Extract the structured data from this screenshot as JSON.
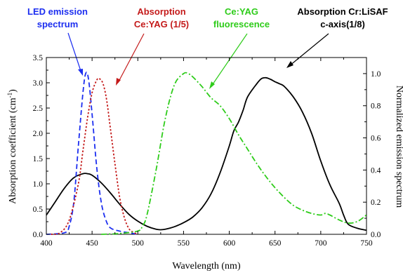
{
  "chart_data": {
    "type": "line",
    "xlabel": "Wavelength (nm)",
    "ylabel_left": "Absorption coefficient (cm",
    "ylabel_left_sup": "-1",
    "ylabel_left_end": ")",
    "ylabel_right": "Normalized emission spectrum",
    "xlim": [
      400,
      750
    ],
    "ylim_left": [
      0,
      3.5
    ],
    "ylim_right": [
      0,
      1.1
    ],
    "grid": false,
    "x_ticks": [
      "400",
      "450",
      "500",
      "550",
      "600",
      "650",
      "700",
      "750"
    ],
    "y_left_ticks": [
      "0.0",
      "0.5",
      "1.0",
      "1.5",
      "2.0",
      "2.5",
      "3.0",
      "3.5"
    ],
    "y_right_ticks": [
      "0.0",
      "0.2",
      "0.4",
      "0.6",
      "0.8",
      "1.0"
    ],
    "annotations": [
      {
        "id": "led",
        "lines": [
          "LED emission",
          "spectrum"
        ],
        "color": "#1c2ef0"
      },
      {
        "id": "abs_ceyag",
        "lines": [
          "Absorption",
          "Ce:YAG (1/5)"
        ],
        "color": "#c41a1a"
      },
      {
        "id": "ceyag_fl",
        "lines": [
          "Ce:YAG",
          "fluorescence"
        ],
        "color": "#2ecc1a"
      },
      {
        "id": "abs_crlisaf",
        "lines": [
          "Absorption Cr:LiSAF",
          "c-axis(1/8)"
        ],
        "color": "#000000"
      }
    ],
    "series": [
      {
        "id": "abs_crlisaf",
        "axis": "left",
        "color": "#000000",
        "style": "solid",
        "x": [
          400,
          410,
          420,
          430,
          440,
          445,
          450,
          460,
          470,
          480,
          490,
          500,
          510,
          520,
          525,
          530,
          540,
          550,
          560,
          570,
          580,
          590,
          600,
          605,
          610,
          615,
          620,
          630,
          635,
          640,
          645,
          650,
          655,
          660,
          670,
          680,
          690,
          700,
          710,
          720,
          725,
          730,
          740,
          750
        ],
        "y": [
          0.38,
          0.65,
          0.92,
          1.12,
          1.2,
          1.2,
          1.17,
          1.02,
          0.82,
          0.6,
          0.4,
          0.26,
          0.16,
          0.1,
          0.09,
          0.1,
          0.15,
          0.23,
          0.34,
          0.52,
          0.8,
          1.22,
          1.75,
          2.05,
          2.22,
          2.45,
          2.72,
          2.98,
          3.08,
          3.1,
          3.07,
          3.02,
          2.98,
          2.93,
          2.72,
          2.42,
          2.0,
          1.45,
          0.98,
          0.62,
          0.38,
          0.2,
          0.12,
          0.08
        ]
      },
      {
        "id": "led",
        "axis": "right",
        "color": "#1c2ef0",
        "style": "dashed",
        "x": [
          400,
          420,
          425,
          430,
          435,
          440,
          443,
          446,
          450,
          455,
          460,
          465,
          470,
          480,
          490,
          500
        ],
        "y": [
          0,
          0.01,
          0.05,
          0.2,
          0.55,
          0.88,
          1.0,
          0.97,
          0.75,
          0.42,
          0.2,
          0.09,
          0.04,
          0.02,
          0.01,
          0
        ]
      },
      {
        "id": "abs_ceyag",
        "axis": "left",
        "color": "#c41a1a",
        "style": "dotted",
        "x": [
          405,
          415,
          425,
          435,
          440,
          445,
          450,
          455,
          458,
          462,
          466,
          470,
          475,
          480,
          485,
          490,
          495,
          500
        ],
        "y": [
          0.0,
          0.03,
          0.28,
          1.0,
          1.65,
          2.3,
          2.8,
          3.05,
          3.08,
          2.98,
          2.65,
          2.1,
          1.4,
          0.75,
          0.35,
          0.12,
          0.04,
          0.0
        ]
      },
      {
        "id": "ceyag_fl",
        "axis": "right",
        "color": "#2ecc1a",
        "style": "dashdot",
        "x": [
          460,
          480,
          500,
          505,
          510,
          520,
          530,
          540,
          550,
          555,
          560,
          570,
          580,
          590,
          600,
          610,
          620,
          630,
          640,
          650,
          660,
          670,
          680,
          690,
          700,
          705,
          710,
          720,
          730,
          740,
          750
        ],
        "y": [
          0.0,
          0.005,
          0.02,
          0.05,
          0.12,
          0.4,
          0.72,
          0.93,
          1.0,
          1.0,
          0.98,
          0.92,
          0.85,
          0.8,
          0.72,
          0.62,
          0.53,
          0.44,
          0.36,
          0.29,
          0.23,
          0.18,
          0.15,
          0.13,
          0.12,
          0.13,
          0.12,
          0.09,
          0.07,
          0.08,
          0.12
        ]
      }
    ]
  }
}
